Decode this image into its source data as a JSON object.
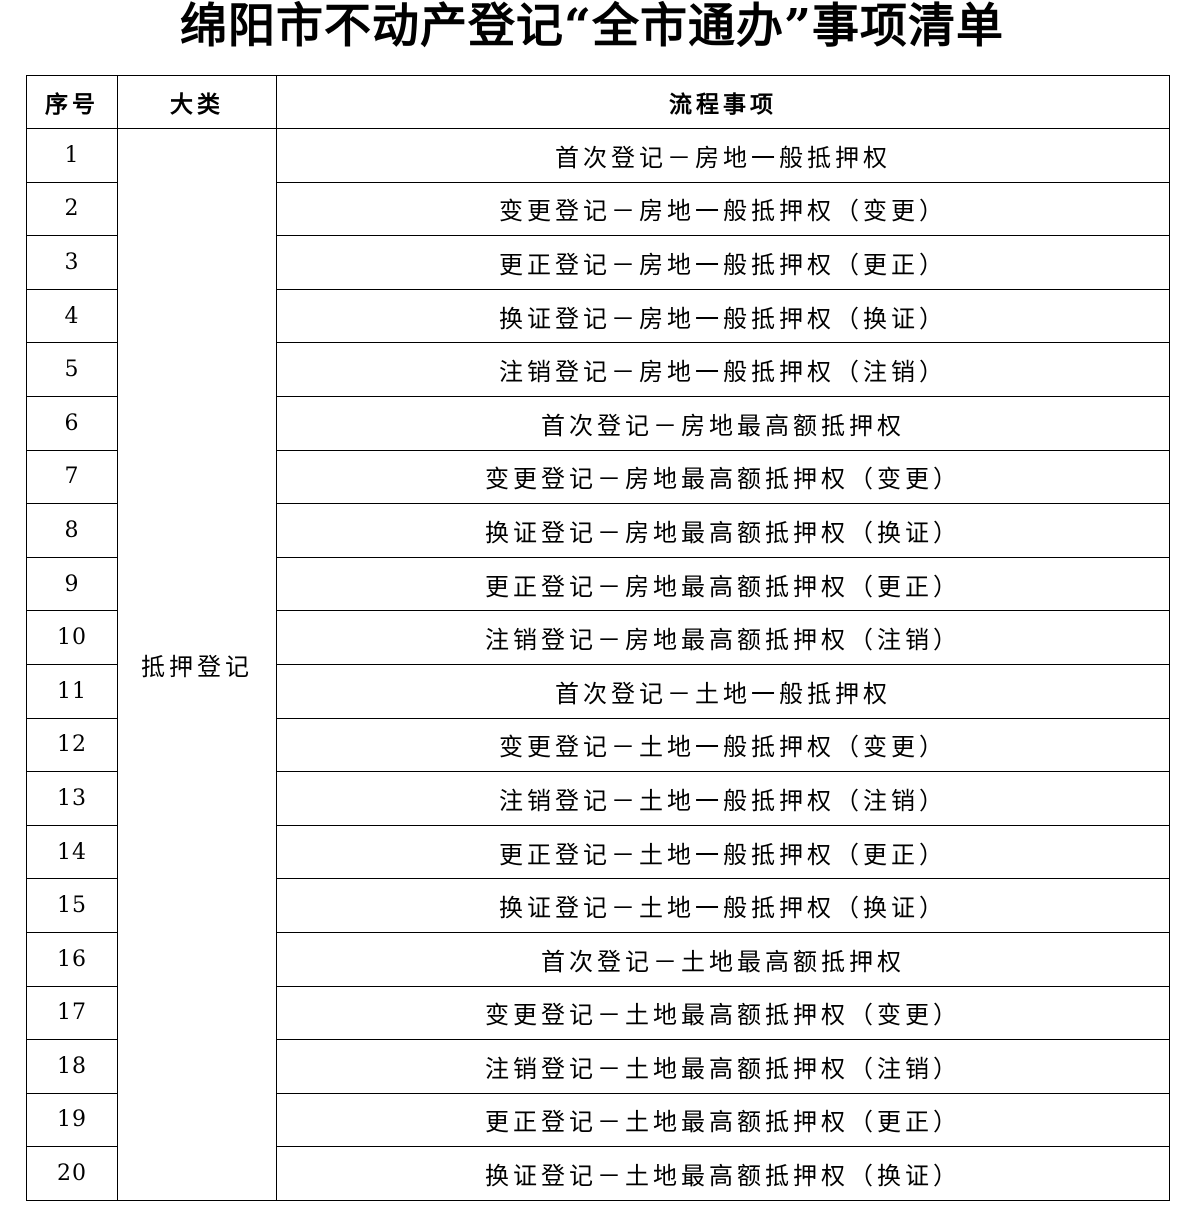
{
  "title": "绵阳市不动产登记“全市通办”事项清单",
  "table": {
    "headers": [
      "序号",
      "大类",
      "流程事项"
    ],
    "category": "抵押登记",
    "rows": [
      {
        "no": "1",
        "item": "首次登记－房地一般抵押权"
      },
      {
        "no": "2",
        "item": "变更登记－房地一般抵押权（变更）"
      },
      {
        "no": "3",
        "item": "更正登记－房地一般抵押权（更正）"
      },
      {
        "no": "4",
        "item": "换证登记－房地一般抵押权（换证）"
      },
      {
        "no": "5",
        "item": "注销登记－房地一般抵押权（注销）"
      },
      {
        "no": "6",
        "item": "首次登记－房地最高额抵押权"
      },
      {
        "no": "7",
        "item": "变更登记－房地最高额抵押权（变更）"
      },
      {
        "no": "8",
        "item": "换证登记－房地最高额抵押权（换证）"
      },
      {
        "no": "9",
        "item": "更正登记－房地最高额抵押权（更正）"
      },
      {
        "no": "10",
        "item": "注销登记－房地最高额抵押权（注销）"
      },
      {
        "no": "11",
        "item": "首次登记－土地一般抵押权"
      },
      {
        "no": "12",
        "item": "变更登记－土地一般抵押权（变更）"
      },
      {
        "no": "13",
        "item": "注销登记－土地一般抵押权（注销）"
      },
      {
        "no": "14",
        "item": "更正登记－土地一般抵押权（更正）"
      },
      {
        "no": "15",
        "item": "换证登记－土地一般抵押权（换证）"
      },
      {
        "no": "16",
        "item": "首次登记－土地最高额抵押权"
      },
      {
        "no": "17",
        "item": "变更登记－土地最高额抵押权（变更）"
      },
      {
        "no": "18",
        "item": "注销登记－土地最高额抵押权（注销）"
      },
      {
        "no": "19",
        "item": "更正登记－土地最高额抵押权（更正）"
      },
      {
        "no": "20",
        "item": "换证登记－土地最高额抵押权（换证）"
      }
    ]
  }
}
